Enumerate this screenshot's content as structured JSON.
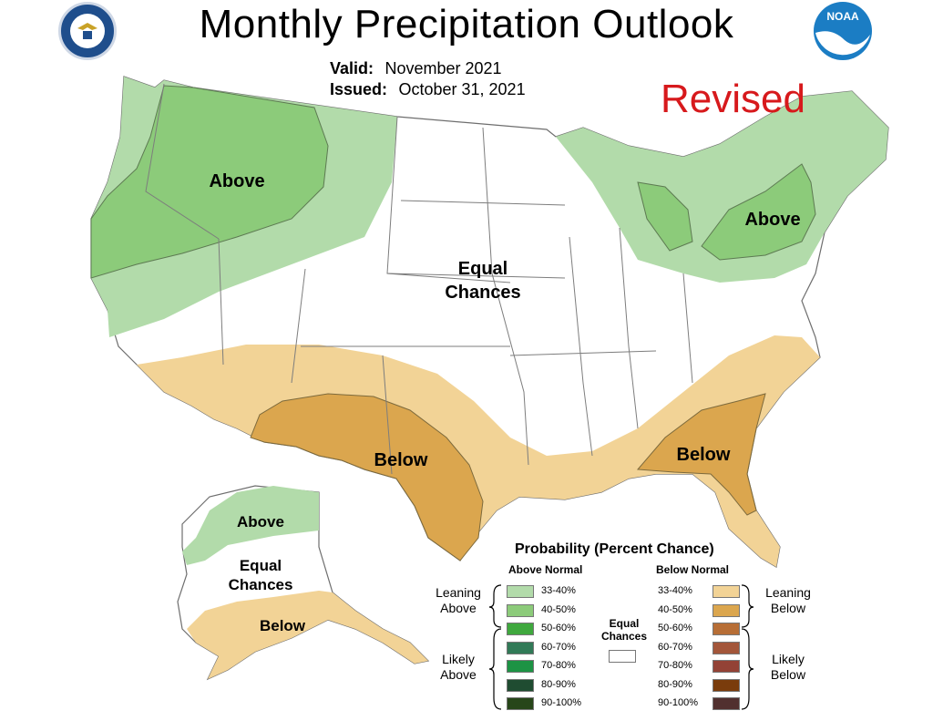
{
  "header": {
    "title": "Monthly Precipitation Outlook",
    "valid_label": "Valid:",
    "valid_value": "November 2021",
    "issued_label": "Issued:",
    "issued_value": "October 31, 2021",
    "revised": "Revised",
    "logo_left": "DEPARTMENT OF COMMERCE · UNITED STATES OF AMERICA",
    "logo_right": "NOAA"
  },
  "map": {
    "conus_labels": {
      "above_west": "Above",
      "above_east": "Above",
      "equal_line1": "Equal",
      "equal_line2": "Chances",
      "below_southwest": "Below",
      "below_southeast": "Below"
    },
    "alaska_labels": {
      "above": "Above",
      "equal_line1": "Equal",
      "equal_line2": "Chances",
      "below": "Below"
    },
    "colors": {
      "above_33_40": "#b2dbaa",
      "above_40_50": "#8ccb7a",
      "below_33_40": "#f2d396",
      "below_40_50": "#dba64e",
      "equal_chances": "#ffffff",
      "state_lines": "#7d7d7d"
    }
  },
  "legend": {
    "title": "Probability (Percent Chance)",
    "above_header": "Above Normal",
    "below_header": "Below Normal",
    "equal_line1": "Equal",
    "equal_line2": "Chances",
    "leaning_above_1": "Leaning",
    "leaning_above_2": "Above",
    "likely_above_1": "Likely",
    "likely_above_2": "Above",
    "leaning_below_1": "Leaning",
    "leaning_below_2": "Below",
    "likely_below_1": "Likely",
    "likely_below_2": "Below",
    "above": [
      {
        "pct": "33-40%",
        "color": "#b2dbaa"
      },
      {
        "pct": "40-50%",
        "color": "#8ccb7a"
      },
      {
        "pct": "50-60%",
        "color": "#3fa83e"
      },
      {
        "pct": "60-70%",
        "color": "#317a57"
      },
      {
        "pct": "70-80%",
        "color": "#1d9344"
      },
      {
        "pct": "80-90%",
        "color": "#1f4c31"
      },
      {
        "pct": "90-100%",
        "color": "#274619"
      }
    ],
    "below": [
      {
        "pct": "33-40%",
        "color": "#f2d396"
      },
      {
        "pct": "40-50%",
        "color": "#dba64e"
      },
      {
        "pct": "50-60%",
        "color": "#b76e36"
      },
      {
        "pct": "60-70%",
        "color": "#a3563a"
      },
      {
        "pct": "70-80%",
        "color": "#934236"
      },
      {
        "pct": "80-90%",
        "color": "#7a3c0c"
      },
      {
        "pct": "90-100%",
        "color": "#51302f"
      }
    ]
  }
}
